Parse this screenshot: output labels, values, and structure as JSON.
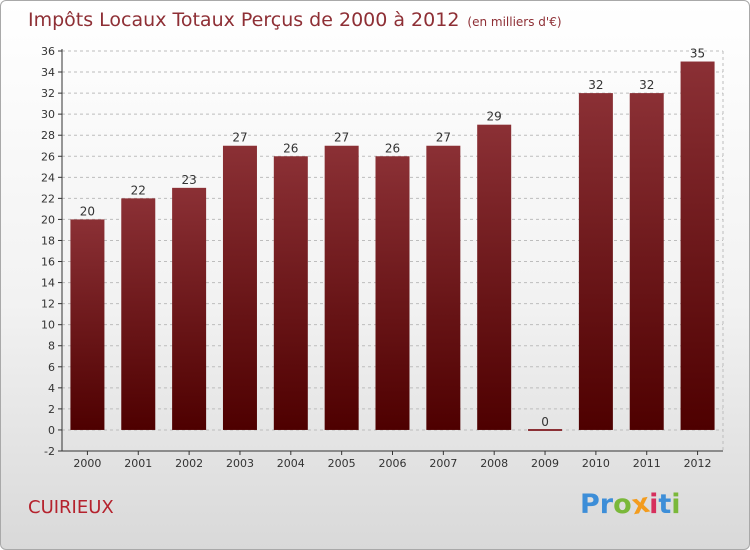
{
  "header": {
    "title": "Impôts Locaux Totaux Perçus de 2000 à 2012",
    "unit": "(en milliers d'€)"
  },
  "footer": {
    "commune": "CUIRIEUX",
    "logo": [
      {
        "ch": "P",
        "color": "#3d8ed8"
      },
      {
        "ch": "r",
        "color": "#3d8ed8"
      },
      {
        "ch": "o",
        "color": "#7ab83a"
      },
      {
        "ch": "x",
        "color": "#f39c1e"
      },
      {
        "ch": "i",
        "color": "#d62f5d"
      },
      {
        "ch": "t",
        "color": "#3d8ed8"
      },
      {
        "ch": "i",
        "color": "#7ab83a"
      }
    ]
  },
  "colors": {
    "bar_top": "#8b3035",
    "bar_bottom": "#4e0000",
    "grid": "#bdbdbd",
    "axis": "#333333"
  },
  "chart_data": {
    "type": "bar",
    "title": "Impôts Locaux Totaux Perçus de 2000 à 2012",
    "xlabel": "",
    "ylabel": "",
    "ylim": [
      -2,
      36
    ],
    "yticks": [
      -2,
      0,
      2,
      4,
      6,
      8,
      10,
      12,
      14,
      16,
      18,
      20,
      22,
      24,
      26,
      28,
      30,
      32,
      34,
      36
    ],
    "grid": true,
    "categories": [
      "2000",
      "2001",
      "2002",
      "2003",
      "2004",
      "2005",
      "2006",
      "2007",
      "2008",
      "2009",
      "2010",
      "2011",
      "2012"
    ],
    "values": [
      20,
      22,
      23,
      27,
      26,
      27,
      26,
      27,
      29,
      0,
      32,
      32,
      35
    ]
  }
}
